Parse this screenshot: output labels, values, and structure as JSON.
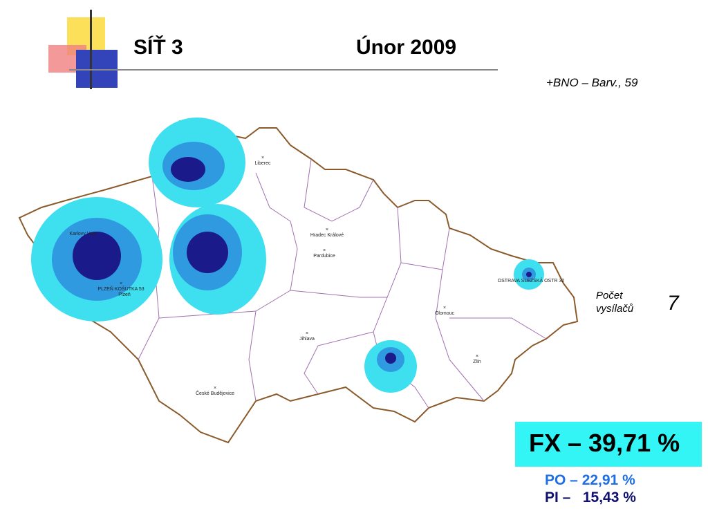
{
  "header": {
    "title": "SÍŤ 3",
    "date": "Únor 2009",
    "subtitle": "+BNO – Barv., 59"
  },
  "map": {
    "cities": [
      "Liberec",
      "Hradec Králové",
      "Pardubice",
      "Olomouc",
      "Jihlava",
      "Zlín",
      "České Budějovice",
      "Karlovy Vary",
      "Plzeň"
    ],
    "transmitters": [
      "PLZEŇ KOŠUTKA 53",
      "OSTRAVA SLEZSKÁ OSTR 32"
    ]
  },
  "stats": {
    "count_label": [
      "Počet",
      "vysílačů"
    ],
    "count": "7",
    "fx": "FX – 39,71 %",
    "po": "PO – 22,91 %",
    "pi": "PI –   15,43 %"
  }
}
